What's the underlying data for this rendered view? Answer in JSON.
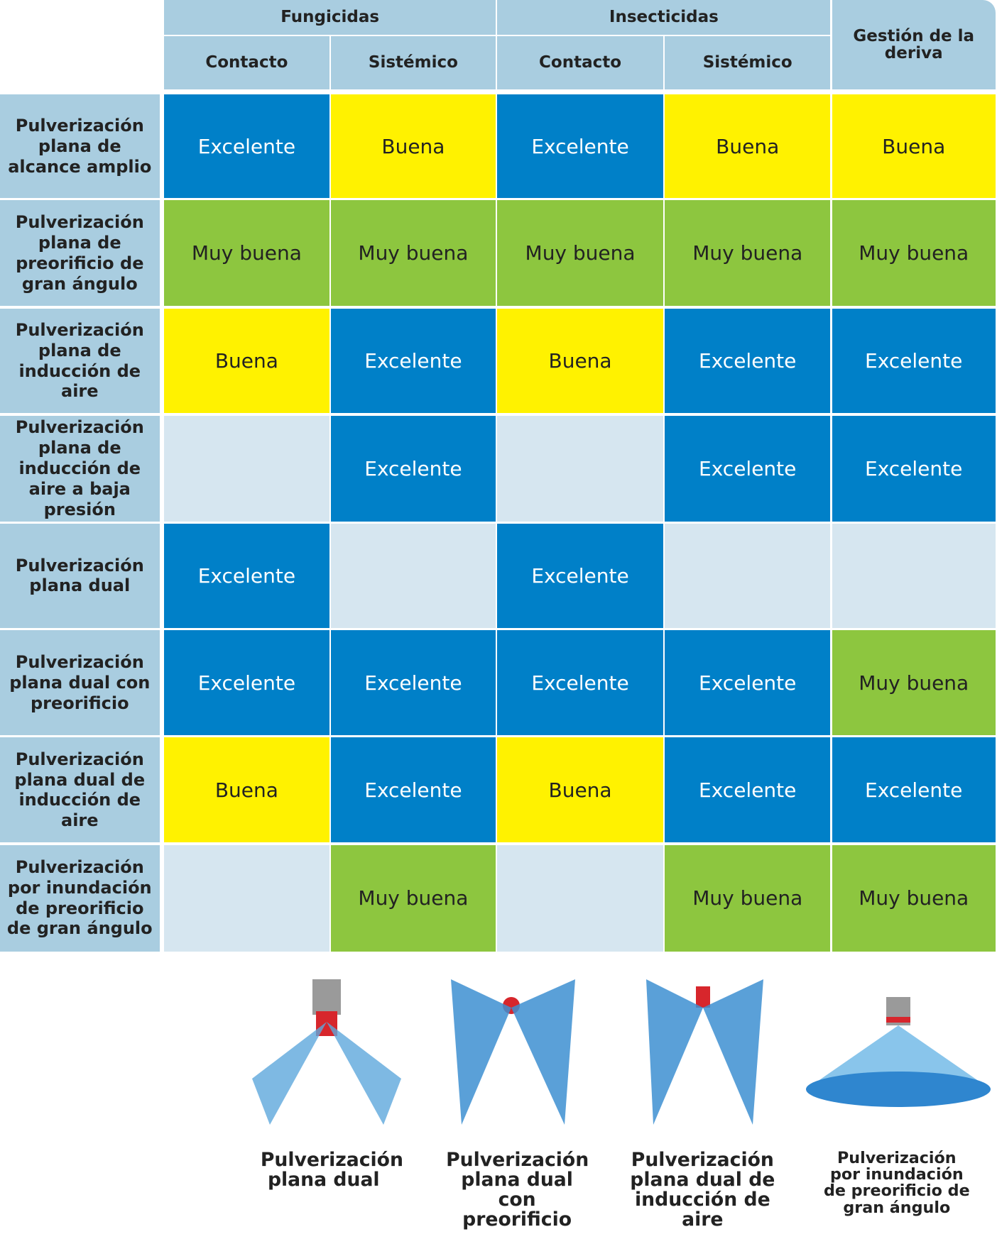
{
  "table": {
    "groups": [
      {
        "label": "Fungicidas",
        "span": 2
      },
      {
        "label": "Insecticidas",
        "span": 2
      },
      {
        "label": "Gestión de la deriva",
        "span": 1
      }
    ],
    "subheaders": [
      "Contacto",
      "Sistémico",
      "Contacto",
      "Sistémico"
    ],
    "rows": [
      {
        "label": "Pulverización plana de alcance amplio",
        "cells": [
          {
            "text": "Excelente",
            "color": "#0080c8"
          },
          {
            "text": "Buena",
            "color": "#fff200"
          },
          {
            "text": "Excelente",
            "color": "#0080c8"
          },
          {
            "text": "Buena",
            "color": "#fff200"
          },
          {
            "text": "Buena",
            "color": "#fff200"
          }
        ]
      },
      {
        "label": "Pulverización plana de preorificio de gran ángulo",
        "cells": [
          {
            "text": "Muy buena",
            "color": "#8dc63f"
          },
          {
            "text": "Muy buena",
            "color": "#8dc63f"
          },
          {
            "text": "Muy buena",
            "color": "#8dc63f"
          },
          {
            "text": "Muy buena",
            "color": "#8dc63f"
          },
          {
            "text": "Muy buena",
            "color": "#8dc63f"
          }
        ]
      },
      {
        "label": "Pulverización plana de inducción de aire",
        "cells": [
          {
            "text": "Buena",
            "color": "#fff200"
          },
          {
            "text": "Excelente",
            "color": "#0080c8"
          },
          {
            "text": "Buena",
            "color": "#fff200"
          },
          {
            "text": "Excelente",
            "color": "#0080c8"
          },
          {
            "text": "Excelente",
            "color": "#0080c8"
          }
        ]
      },
      {
        "label": "Pulverización plana de inducción de aire a baja presión",
        "cells": [
          {
            "color": "#d6e6f0"
          },
          {
            "text": "Excelente",
            "color": "#0080c8"
          },
          {
            "color": "#d6e6f0"
          },
          {
            "text": "Excelente",
            "color": "#0080c8"
          },
          {
            "text": "Excelente",
            "color": "#0080c8"
          }
        ]
      },
      {
        "label": "Pulverización plana dual",
        "cells": [
          {
            "text": "Excelente",
            "color": "#0080c8"
          },
          {
            "color": "#d6e6f0"
          },
          {
            "text": "Excelente",
            "color": "#0080c8"
          },
          {
            "color": "#d6e6f0"
          },
          {
            "color": "#d6e6f0"
          }
        ]
      },
      {
        "label": "Pulverización plana dual con preorificio",
        "cells": [
          {
            "text": "Excelente",
            "color": "#0080c8"
          },
          {
            "text": "Excelente",
            "color": "#0080c8"
          },
          {
            "text": "Excelente",
            "color": "#0080c8"
          },
          {
            "text": "Excelente",
            "color": "#0080c8"
          },
          {
            "text": "Muy buena",
            "color": "#8dc63f"
          }
        ]
      },
      {
        "label": "Pulverización plana dual de inducción de aire",
        "cells": [
          {
            "text": "Buena",
            "color": "#fff200"
          },
          {
            "text": "Excelente",
            "color": "#0080c8"
          },
          {
            "text": "Buena",
            "color": "#fff200"
          },
          {
            "text": "Excelente",
            "color": "#0080c8"
          },
          {
            "text": "Excelente",
            "color": "#0080c8"
          }
        ]
      },
      {
        "label": "Pulverización por inundación de preorificio de gran ángulo",
        "cells": [
          {
            "color": "#d6e6f0"
          },
          {
            "text": "Muy buena",
            "color": "#8dc63f"
          },
          {
            "color": "#d6e6f0"
          },
          {
            "text": "Muy buena",
            "color": "#8dc63f"
          },
          {
            "text": "Muy buena",
            "color": "#8dc63f"
          }
        ]
      }
    ]
  },
  "nozzles": [
    "Pulverización plana dual",
    "Pulverización plana dual con preorificio",
    "Pulverización plana dual de inducción de aire",
    "Pulverización por inundación de preorificio de gran ángulo"
  ]
}
